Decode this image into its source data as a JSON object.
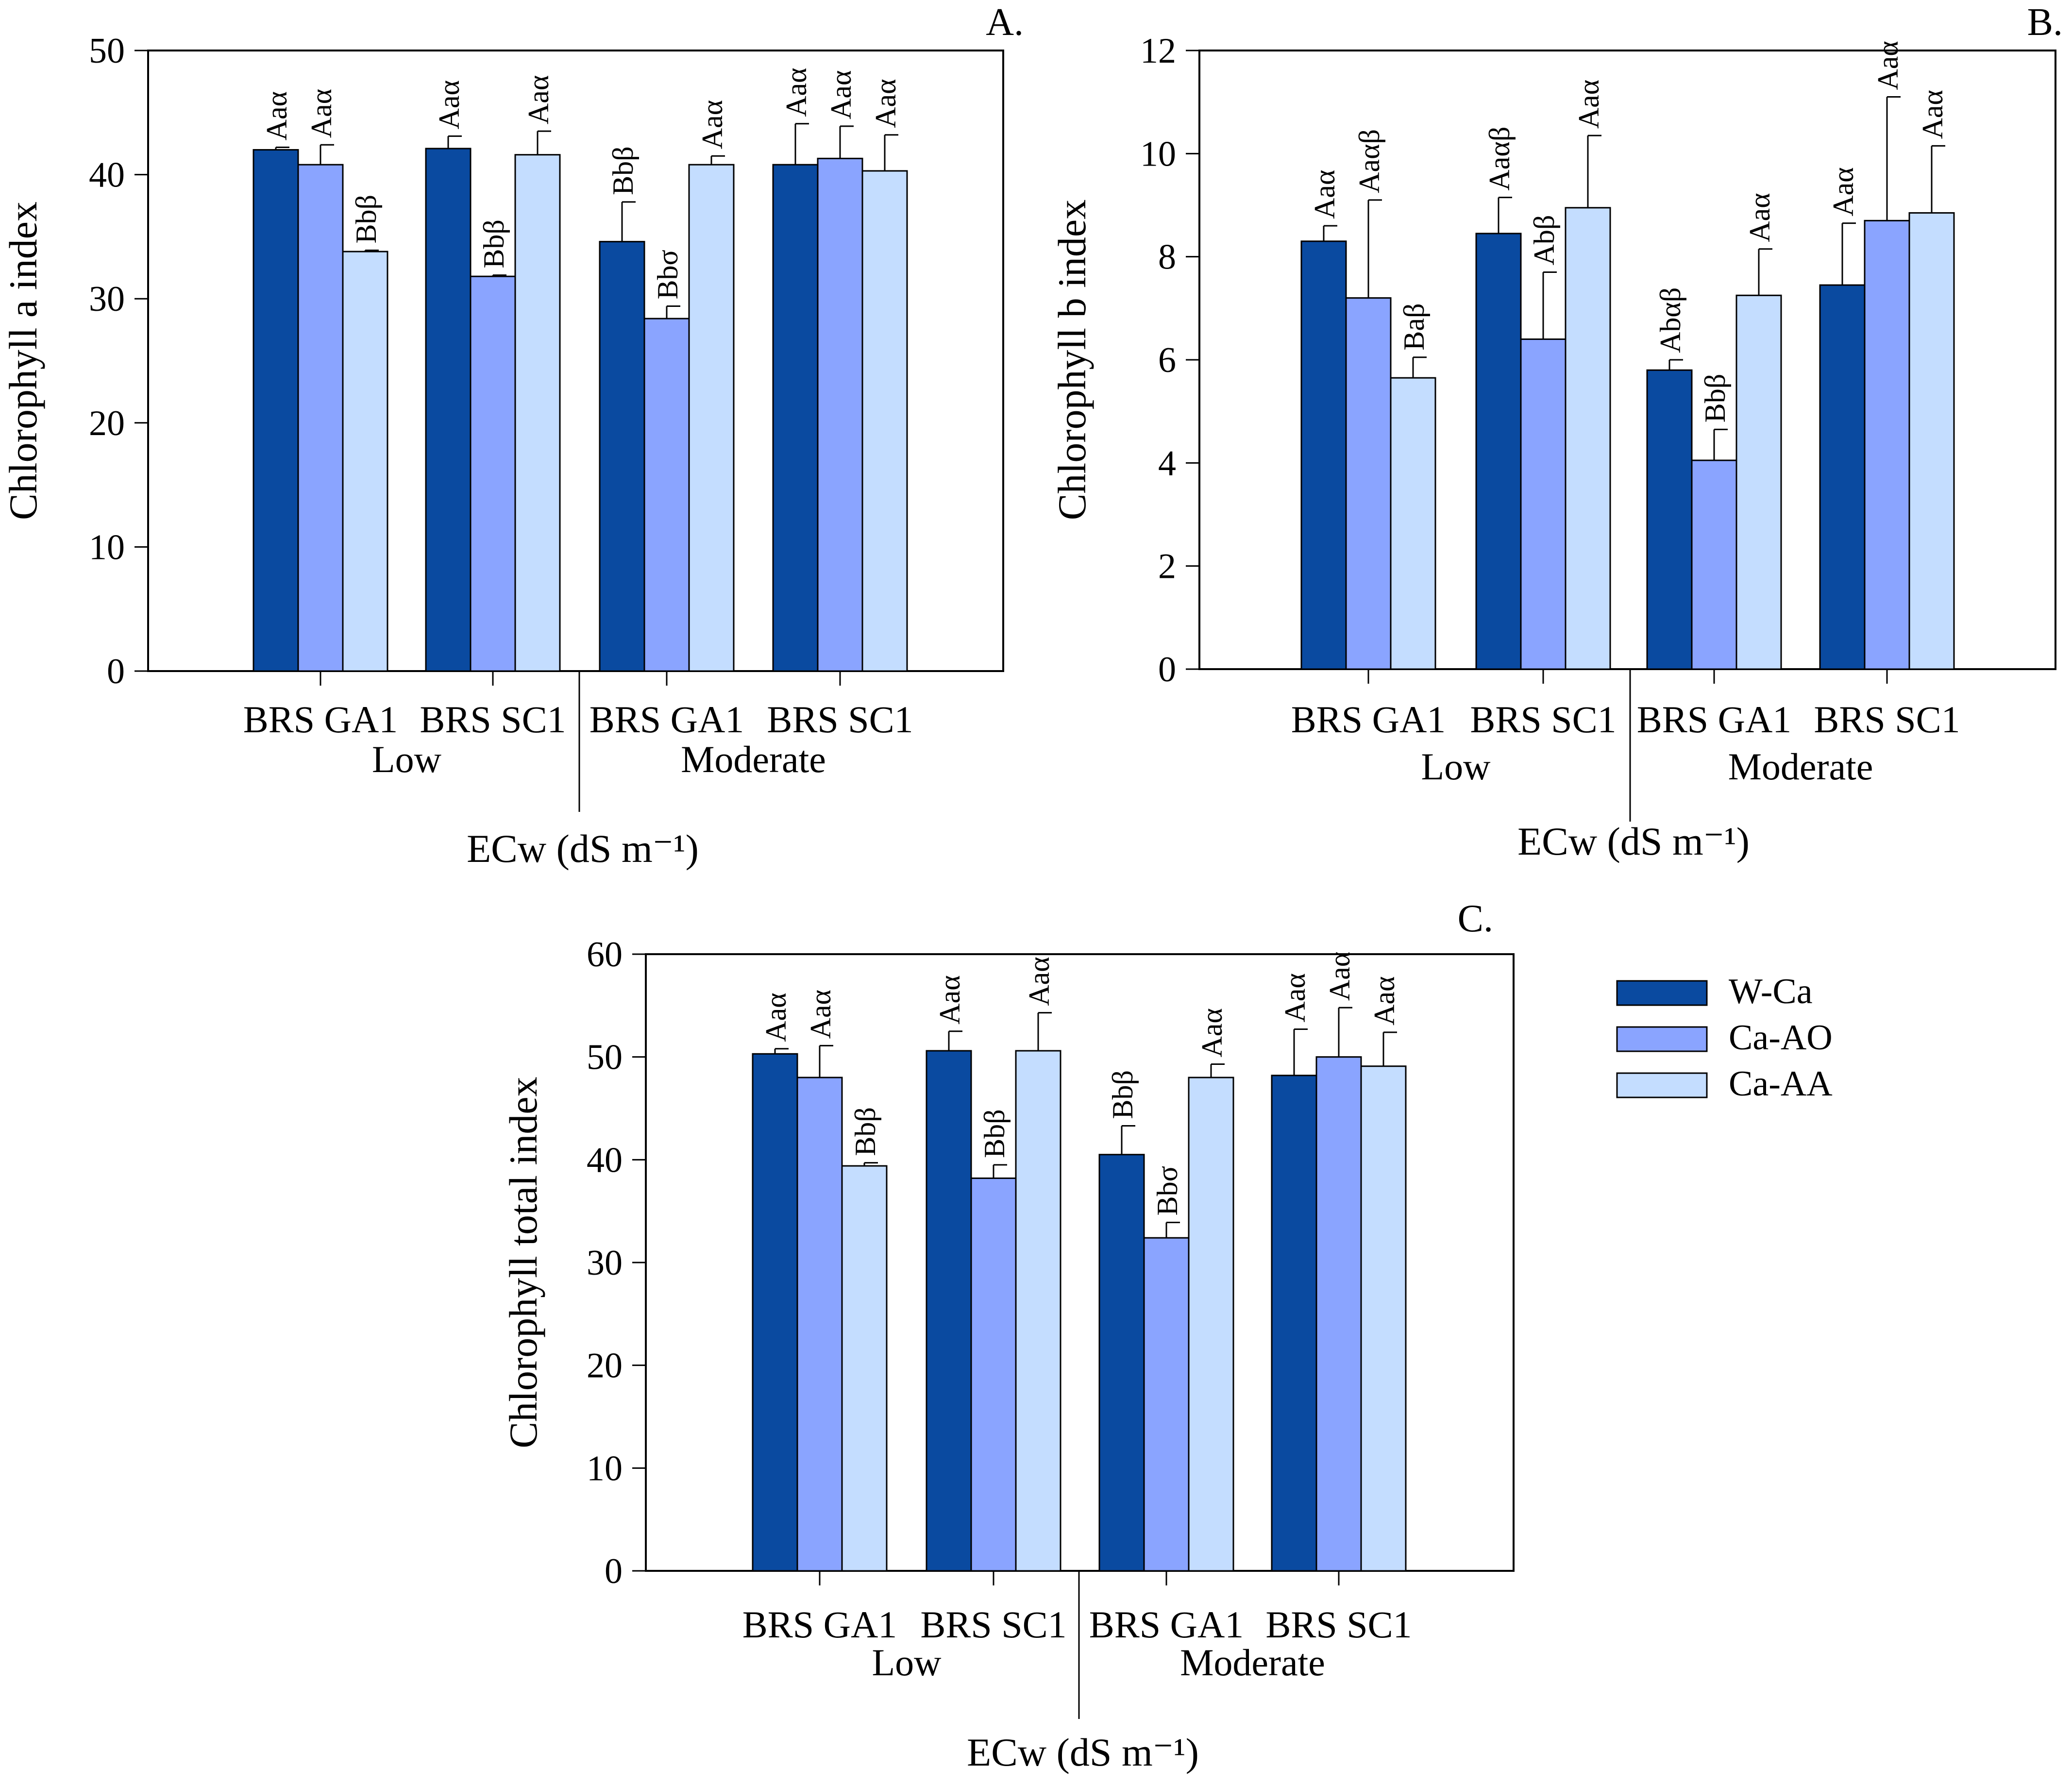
{
  "colors": {
    "W-Ca": "#0a4aa0",
    "Ca-AO": "#8aa4ff",
    "Ca-AA": "#c4ddff"
  },
  "legend": {
    "items": [
      {
        "name": "W-Ca"
      },
      {
        "name": "Ca-AO"
      },
      {
        "name": "Ca-AA"
      }
    ]
  },
  "chart_data": [
    {
      "id": "A",
      "panel_label": "A.",
      "type": "bar",
      "ylabel": "Chlorophyll a index",
      "xlabel": "ECw (dS m⁻¹)",
      "ylim": [
        0,
        50
      ],
      "yticks": [
        0,
        10,
        20,
        30,
        40,
        50
      ],
      "categories": [
        "BRS GA1",
        "BRS SC1",
        "BRS GA1",
        "BRS SC1"
      ],
      "groups": [
        "Low",
        "Moderate"
      ],
      "series": [
        {
          "name": "W-Ca",
          "values": [
            42.0,
            42.1,
            34.6,
            40.8
          ],
          "errors": [
            0.2,
            1.0,
            3.2,
            3.3
          ],
          "labels": [
            "Aaα",
            "Aaα",
            "Bbβ",
            "Aaα"
          ]
        },
        {
          "name": "Ca-AO",
          "values": [
            40.8,
            31.8,
            28.4,
            41.3
          ],
          "errors": [
            1.6,
            0.1,
            1.0,
            2.6
          ],
          "labels": [
            "Aaα",
            "Bbβ",
            "Bbσ",
            "Aaα"
          ]
        },
        {
          "name": "Ca-AA",
          "values": [
            33.8,
            41.6,
            40.8,
            40.3
          ],
          "errors": [
            0.1,
            1.9,
            0.7,
            2.9
          ],
          "labels": [
            "Bbβ",
            "Aaα",
            "Aaα",
            "Aaα"
          ]
        }
      ]
    },
    {
      "id": "B",
      "panel_label": "B.",
      "type": "bar",
      "ylabel": "Chlorophyll b index",
      "xlabel": "ECw (dS m⁻¹)",
      "ylim": [
        0,
        12
      ],
      "yticks": [
        0,
        2,
        4,
        6,
        8,
        10,
        12
      ],
      "categories": [
        "BRS GA1",
        "BRS SC1",
        "BRS GA1",
        "BRS SC1"
      ],
      "groups": [
        "Low",
        "Moderate"
      ],
      "series": [
        {
          "name": "W-Ca",
          "values": [
            8.3,
            8.45,
            5.8,
            7.45
          ],
          "errors": [
            0.3,
            0.7,
            0.2,
            1.2
          ],
          "labels": [
            "Aaα",
            "Aaαβ",
            "Abαβ",
            "Aaα"
          ]
        },
        {
          "name": "Ca-AO",
          "values": [
            7.2,
            6.4,
            4.05,
            8.7
          ],
          "errors": [
            1.9,
            1.3,
            0.6,
            2.4
          ],
          "labels": [
            "Aaαβ",
            "Abβ",
            "Bbβ",
            "Aaα"
          ]
        },
        {
          "name": "Ca-AA",
          "values": [
            5.65,
            8.95,
            7.25,
            8.85
          ],
          "errors": [
            0.4,
            1.4,
            0.9,
            1.3
          ],
          "labels": [
            "Baβ",
            "Aaα",
            "Aaα",
            "Aaα"
          ]
        }
      ]
    },
    {
      "id": "C",
      "panel_label": "C.",
      "type": "bar",
      "ylabel": "Chlorophyll total index",
      "xlabel": "ECw (dS m⁻¹)",
      "ylim": [
        0,
        60
      ],
      "yticks": [
        0,
        10,
        20,
        30,
        40,
        50,
        60
      ],
      "categories": [
        "BRS GA1",
        "BRS SC1",
        "BRS GA1",
        "BRS SC1"
      ],
      "groups": [
        "Low",
        "Moderate"
      ],
      "series": [
        {
          "name": "W-Ca",
          "values": [
            50.3,
            50.6,
            40.5,
            48.2
          ],
          "errors": [
            0.5,
            1.9,
            2.8,
            4.5
          ],
          "labels": [
            "Aaα",
            "Aaα",
            "Bbβ",
            "Aaα"
          ]
        },
        {
          "name": "Ca-AO",
          "values": [
            48.0,
            38.2,
            32.4,
            50.0
          ],
          "errors": [
            3.1,
            1.3,
            1.5,
            4.8
          ],
          "labels": [
            "Aaα",
            "Bbβ",
            "Bbσ",
            "Aaα"
          ]
        },
        {
          "name": "Ca-AA",
          "values": [
            39.4,
            50.6,
            48.0,
            49.1
          ],
          "errors": [
            0.3,
            3.7,
            1.3,
            3.3
          ],
          "labels": [
            "Bbβ",
            "Aaα",
            "Aaα",
            "Aaα"
          ]
        }
      ]
    }
  ]
}
